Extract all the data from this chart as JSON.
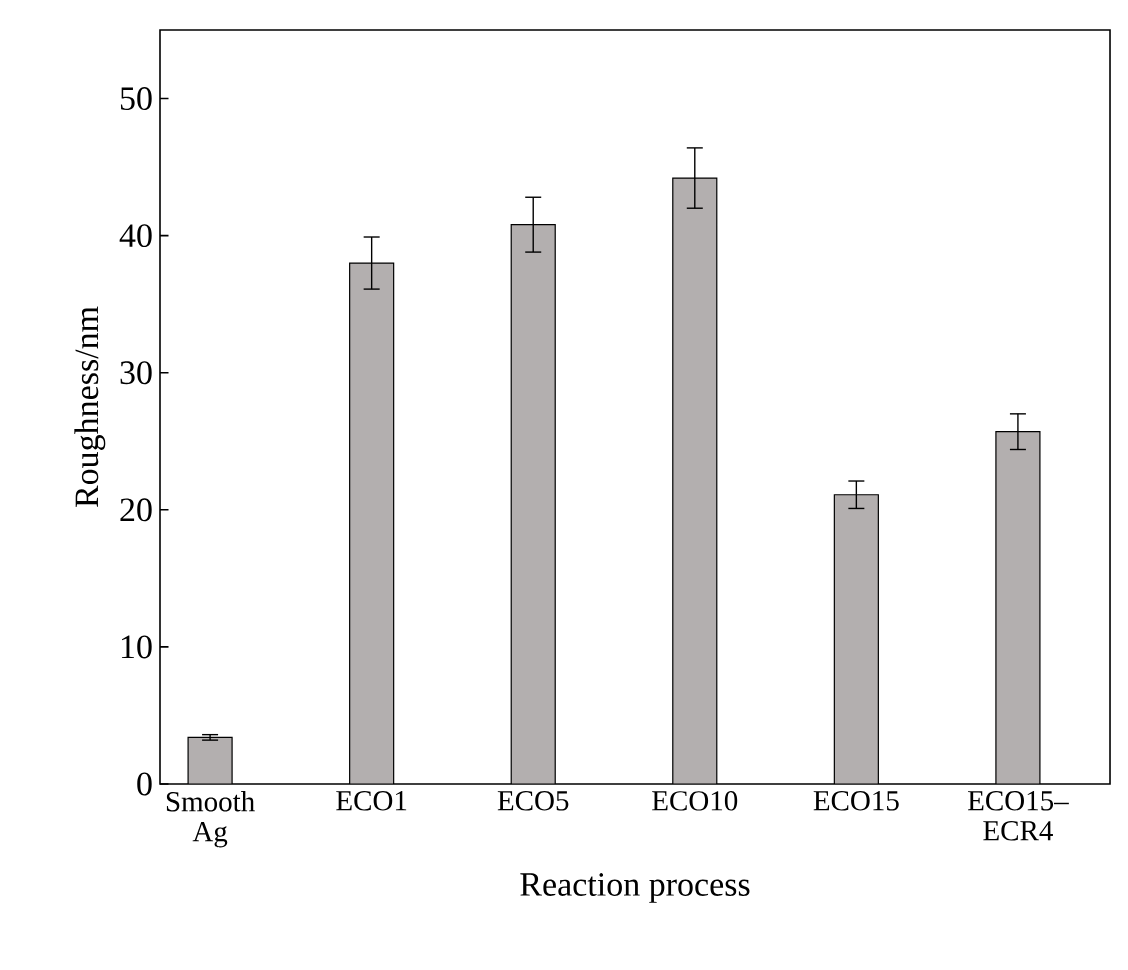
{
  "chart_data": {
    "type": "bar",
    "xlabel": "Reaction process",
    "ylabel": "Roughness/nm",
    "categories": [
      "Smooth Ag",
      "ECO1",
      "ECO5",
      "ECO10",
      "ECO15",
      "ECO15–ECR4"
    ],
    "values": [
      3.4,
      38.0,
      40.8,
      44.2,
      21.1,
      25.7
    ],
    "errors": [
      0.2,
      1.9,
      2.0,
      2.2,
      1.0,
      1.3
    ],
    "color": "#b3afaf",
    "ylim": [
      0,
      55
    ],
    "yticks": [
      0,
      10,
      20,
      30,
      40,
      50
    ],
    "grid": false
  }
}
